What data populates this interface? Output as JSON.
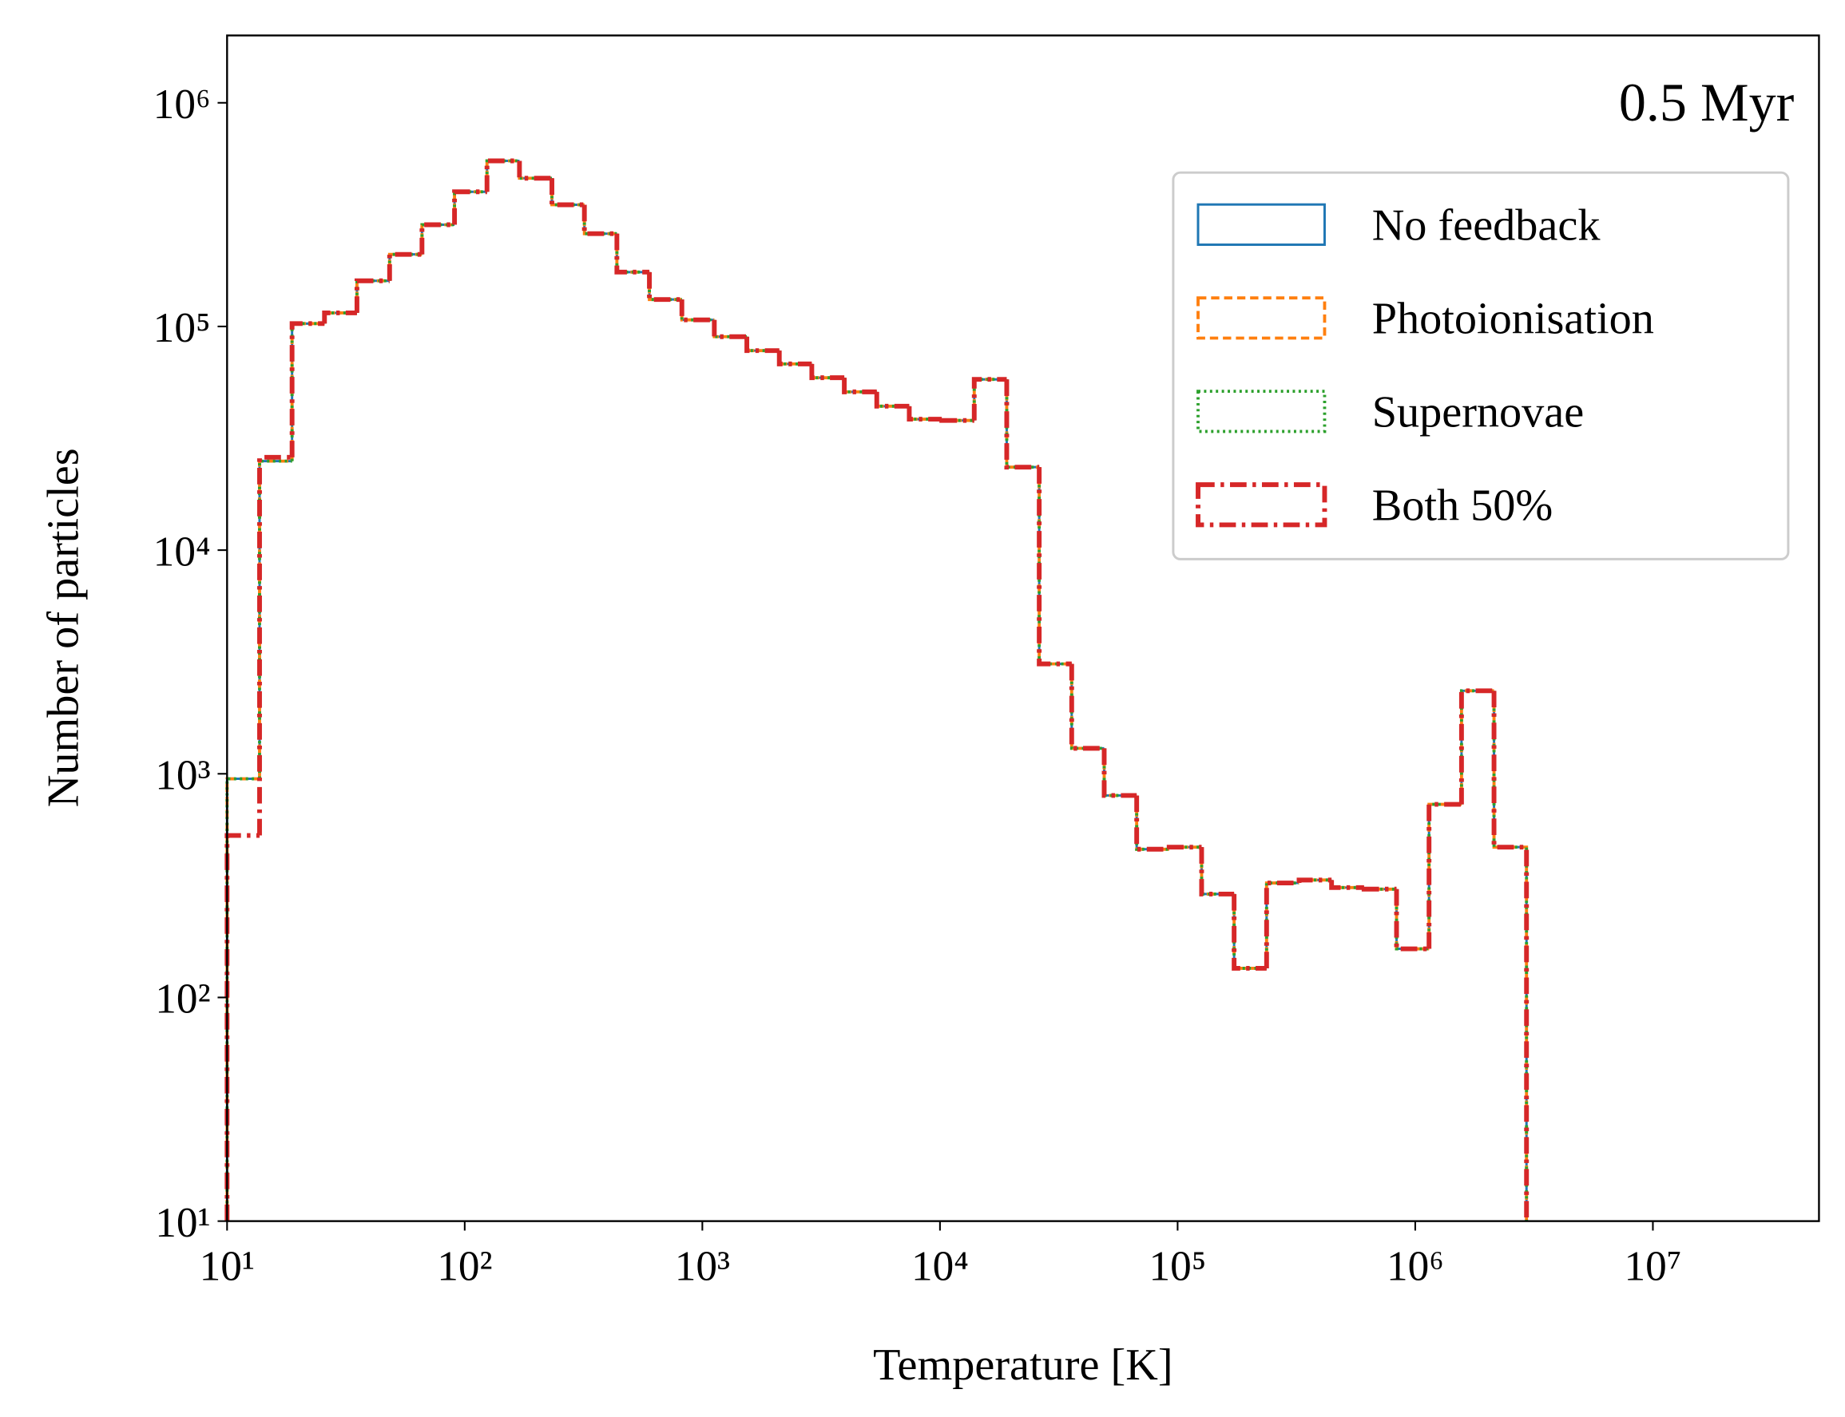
{
  "chart_data": {
    "type": "histogram",
    "annotation": "0.5 Myr",
    "xlabel": "Temperature [K]",
    "ylabel": "Number of particles",
    "xscale": "log",
    "yscale": "log",
    "xlim": [
      10,
      50000000
    ],
    "ylim": [
      10,
      2000000
    ],
    "xticks": [
      {
        "value": 10,
        "label": "10¹"
      },
      {
        "value": 100,
        "label": "10²"
      },
      {
        "value": 1000,
        "label": "10³"
      },
      {
        "value": 10000,
        "label": "10⁴"
      },
      {
        "value": 100000,
        "label": "10⁵"
      },
      {
        "value": 1000000,
        "label": "10⁶"
      },
      {
        "value": 10000000,
        "label": "10⁷"
      }
    ],
    "yticks": [
      {
        "value": 10,
        "label": "10¹"
      },
      {
        "value": 100,
        "label": "10²"
      },
      {
        "value": 1000,
        "label": "10³"
      },
      {
        "value": 10000,
        "label": "10⁴"
      },
      {
        "value": 100000,
        "label": "10⁵"
      },
      {
        "value": 1000000,
        "label": "10⁶"
      }
    ],
    "legend": "upper right",
    "bins": [
      10,
      13.7,
      18.77,
      25.7,
      35.2,
      48.3,
      66.1,
      90.6,
      124.1,
      170,
      232.8,
      318.9,
      436.9,
      598.6,
      820,
      1123,
      1539,
      2108,
      2888,
      3957,
      5420,
      7426,
      10174,
      13937,
      19093,
      26157,
      35836,
      49096,
      67260,
      92112,
      126183,
      172868,
      236833,
      324450,
      444490,
      608950,
      834250,
      1142900,
      1565800,
      2145100,
      2938800
    ],
    "series": [
      {
        "name": "No feedback",
        "color": "#1f77b4",
        "linestyle": "solid",
        "values": [
          950,
          25000,
          103000,
          115000,
          160000,
          210000,
          285000,
          400000,
          550000,
          460000,
          350000,
          260000,
          175000,
          132000,
          107000,
          90000,
          78000,
          68000,
          59000,
          51000,
          44000,
          38500,
          38000,
          58000,
          23500,
          3100,
          1300,
          800,
          460,
          470,
          290,
          135,
          325,
          335,
          310,
          305,
          165,
          730,
          2350,
          470
        ]
      },
      {
        "name": "Photoionisation",
        "color": "#ff7f0e",
        "linestyle": "dashed",
        "values": [
          950,
          25000,
          103000,
          115000,
          160000,
          210000,
          285000,
          400000,
          550000,
          460000,
          350000,
          260000,
          175000,
          132000,
          107000,
          90000,
          78000,
          68000,
          59000,
          51000,
          44000,
          38500,
          38000,
          58000,
          23500,
          3100,
          1300,
          800,
          460,
          470,
          290,
          135,
          325,
          335,
          310,
          305,
          165,
          730,
          2350,
          470
        ]
      },
      {
        "name": "Supernovae",
        "color": "#2ca02c",
        "linestyle": "dotted",
        "values": [
          950,
          25000,
          103000,
          115000,
          160000,
          210000,
          285000,
          400000,
          550000,
          460000,
          350000,
          260000,
          175000,
          132000,
          107000,
          90000,
          78000,
          68000,
          59000,
          51000,
          44000,
          38500,
          38000,
          58000,
          23500,
          3100,
          1300,
          800,
          460,
          470,
          290,
          135,
          325,
          335,
          310,
          305,
          165,
          730,
          2350,
          470
        ]
      },
      {
        "name": "Both 50%",
        "color": "#d62728",
        "linestyle": "dashdot",
        "values": [
          530,
          26000,
          103000,
          115000,
          160000,
          210000,
          285000,
          400000,
          550000,
          460000,
          350000,
          260000,
          175000,
          132000,
          107000,
          90000,
          78000,
          68000,
          59000,
          51000,
          44000,
          38500,
          38000,
          58000,
          23500,
          3100,
          1300,
          800,
          460,
          470,
          290,
          135,
          325,
          335,
          310,
          305,
          165,
          730,
          2350,
          470
        ]
      }
    ]
  }
}
